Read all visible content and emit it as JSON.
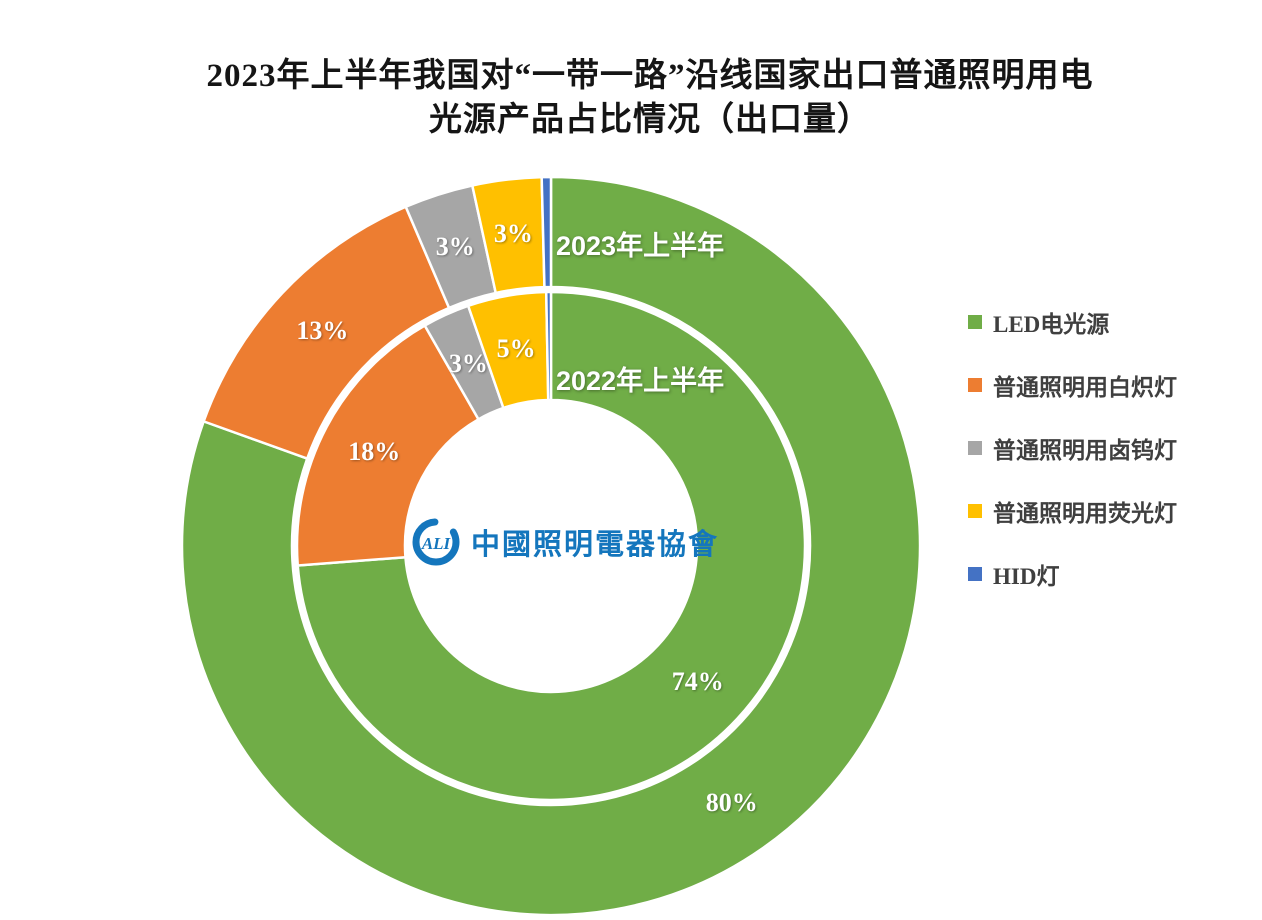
{
  "chart_data": {
    "type": "doughnut",
    "title": "2023年上半年我国对“一带一路”沿线国家出口普通照明用电光源产品占比情况（出口量）",
    "title_lines": [
      "2023年上半年我国对“一带一路”沿线国家出口普通照明用电",
      "光源产品占比情况（出口量）"
    ],
    "categories": [
      "LED电光源",
      "普通照明用白炽灯",
      "普通照明用卤钨灯",
      "普通照明用荧光灯",
      "HID灯"
    ],
    "colors": [
      "#70AD47",
      "#ED7D31",
      "#A6A6A6",
      "#FFC000",
      "#4472C4"
    ],
    "label_color": "#FFFFFF",
    "legend_position": "right",
    "grid": false,
    "series": [
      {
        "name": "2023年上半年",
        "ring": "outer",
        "values": [
          80,
          13,
          3,
          3,
          0.4
        ],
        "labels": [
          "80%",
          "13%",
          "3%",
          "3%",
          ""
        ]
      },
      {
        "name": "2022年上半年",
        "ring": "inner",
        "values": [
          74,
          18,
          3,
          5,
          0.3
        ],
        "labels": [
          "74%",
          "18%",
          "3%",
          "5%",
          ""
        ]
      }
    ]
  },
  "logo": {
    "mark_text": "ALI",
    "text": "中國照明電器協會",
    "color": "#1476BD"
  }
}
